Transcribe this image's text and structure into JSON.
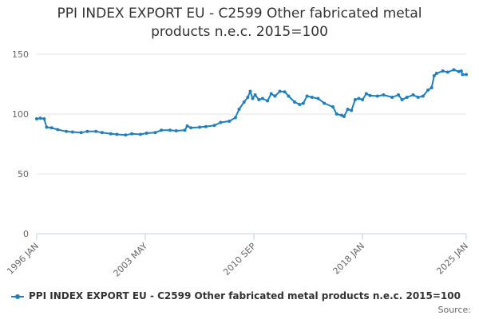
{
  "colors": {
    "series": "#1f7fbf"
  },
  "chart_data": {
    "type": "line",
    "title_line1": "PPI INDEX EXPORT EU - C2599 Other fabricated metal",
    "title_line2": "products n.e.c. 2015=100",
    "xlabel": "",
    "ylabel": "",
    "ylim": [
      0,
      150
    ],
    "y_ticks": [
      0,
      50,
      100,
      150
    ],
    "x_range": [
      "1996-01",
      "2025-01"
    ],
    "x_ticks": [
      {
        "date": "1996-01",
        "label": "1996 JAN"
      },
      {
        "date": "2003-05",
        "label": "2003 MAY"
      },
      {
        "date": "2010-09",
        "label": "2010 SEP"
      },
      {
        "date": "2018-01",
        "label": "2018 JAN"
      },
      {
        "date": "2025-01",
        "label": "2025 JAN"
      }
    ],
    "grid": true,
    "legend_position": "bottom",
    "series": [
      {
        "name": "PPI INDEX EXPORT EU - C2599 Other fabricated metal products n.e.c. 2015=100",
        "points": [
          [
            "1996-01",
            96
          ],
          [
            "1996-04",
            96.5
          ],
          [
            "1996-07",
            96
          ],
          [
            "1996-09",
            89
          ],
          [
            "1997-01",
            88.5
          ],
          [
            "1997-06",
            87
          ],
          [
            "1998-01",
            85.5
          ],
          [
            "1998-06",
            85
          ],
          [
            "1999-01",
            84.5
          ],
          [
            "1999-06",
            85.5
          ],
          [
            "2000-01",
            85.5
          ],
          [
            "2000-06",
            84.5
          ],
          [
            "2001-01",
            83.5
          ],
          [
            "2001-06",
            83
          ],
          [
            "2002-01",
            82.5
          ],
          [
            "2002-06",
            83.5
          ],
          [
            "2003-01",
            83
          ],
          [
            "2003-06",
            84
          ],
          [
            "2004-01",
            84.5
          ],
          [
            "2004-06",
            86.5
          ],
          [
            "2005-01",
            86.5
          ],
          [
            "2005-06",
            86
          ],
          [
            "2006-01",
            86.5
          ],
          [
            "2006-03",
            90
          ],
          [
            "2006-06",
            88.5
          ],
          [
            "2007-01",
            89
          ],
          [
            "2007-06",
            89.5
          ],
          [
            "2008-01",
            90.5
          ],
          [
            "2008-06",
            93
          ],
          [
            "2009-01",
            94
          ],
          [
            "2009-06",
            97
          ],
          [
            "2009-09",
            104
          ],
          [
            "2010-01",
            110
          ],
          [
            "2010-04",
            114
          ],
          [
            "2010-06",
            119
          ],
          [
            "2010-08",
            113
          ],
          [
            "2010-10",
            116
          ],
          [
            "2011-01",
            112
          ],
          [
            "2011-04",
            113
          ],
          [
            "2011-08",
            111
          ],
          [
            "2011-11",
            117
          ],
          [
            "2012-02",
            115
          ],
          [
            "2012-06",
            119
          ],
          [
            "2012-10",
            118.5
          ],
          [
            "2013-01",
            115
          ],
          [
            "2013-06",
            110
          ],
          [
            "2013-10",
            108
          ],
          [
            "2014-01",
            109
          ],
          [
            "2014-04",
            115
          ],
          [
            "2014-08",
            114
          ],
          [
            "2015-01",
            113
          ],
          [
            "2015-06",
            109
          ],
          [
            "2016-01",
            106
          ],
          [
            "2016-04",
            100
          ],
          [
            "2016-08",
            99
          ],
          [
            "2016-10",
            98
          ],
          [
            "2017-01",
            104
          ],
          [
            "2017-04",
            103
          ],
          [
            "2017-07",
            112
          ],
          [
            "2017-10",
            113
          ],
          [
            "2018-01",
            112
          ],
          [
            "2018-04",
            117
          ],
          [
            "2018-07",
            115.5
          ],
          [
            "2019-01",
            115
          ],
          [
            "2019-06",
            116
          ],
          [
            "2020-01",
            114
          ],
          [
            "2020-06",
            116
          ],
          [
            "2020-09",
            112
          ],
          [
            "2021-01",
            114
          ],
          [
            "2021-06",
            116
          ],
          [
            "2021-10",
            114
          ],
          [
            "2022-02",
            115
          ],
          [
            "2022-06",
            120
          ],
          [
            "2022-09",
            122
          ],
          [
            "2022-11",
            132
          ],
          [
            "2023-01",
            134
          ],
          [
            "2023-06",
            136
          ],
          [
            "2023-10",
            135
          ],
          [
            "2024-03",
            137
          ],
          [
            "2024-07",
            135.5
          ],
          [
            "2024-09",
            136
          ],
          [
            "2024-10",
            133
          ],
          [
            "2025-01",
            133
          ]
        ]
      }
    ]
  },
  "credits": "Source:"
}
